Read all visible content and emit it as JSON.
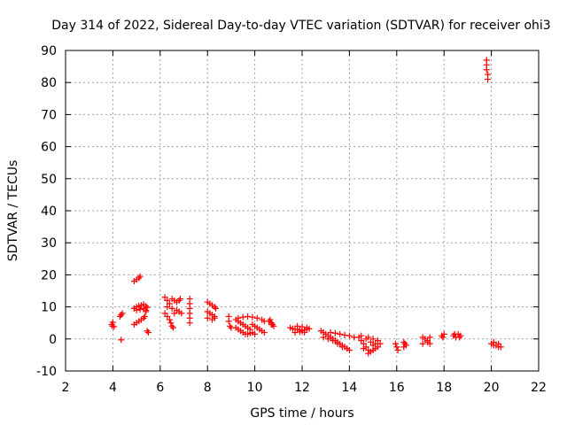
{
  "chart_data": {
    "type": "scatter",
    "title": "Day 314 of 2022, Sidereal Day-to-day VTEC variation (SDTVAR) for receiver ohi3",
    "xlabel": "GPS time / hours",
    "ylabel": "SDTVAR / TECUs",
    "xlim": [
      2,
      22
    ],
    "ylim": [
      -10,
      90
    ],
    "xticks": [
      2,
      4,
      6,
      8,
      10,
      12,
      14,
      16,
      18,
      20,
      22
    ],
    "yticks": [
      -10,
      0,
      10,
      20,
      30,
      40,
      50,
      60,
      70,
      80,
      90
    ],
    "grid": true,
    "marker": "+",
    "color": "#ff0000",
    "series": [
      {
        "name": "SDTVAR",
        "points": [
          [
            3.95,
            4.5
          ],
          [
            4.0,
            5.2
          ],
          [
            4.05,
            3.8
          ],
          [
            3.98,
            4.0
          ],
          [
            4.3,
            7.0
          ],
          [
            4.35,
            7.5
          ],
          [
            4.4,
            8.0
          ],
          [
            4.35,
            -0.3
          ],
          [
            4.9,
            18.0
          ],
          [
            5.0,
            18.5
          ],
          [
            5.1,
            19.0
          ],
          [
            5.15,
            19.5
          ],
          [
            4.9,
            9.5
          ],
          [
            5.0,
            10.0
          ],
          [
            5.1,
            10.3
          ],
          [
            5.2,
            10.5
          ],
          [
            5.3,
            10.8
          ],
          [
            5.4,
            10.2
          ],
          [
            5.45,
            9.8
          ],
          [
            5.0,
            9.0
          ],
          [
            5.15,
            9.2
          ],
          [
            5.3,
            9.5
          ],
          [
            5.4,
            9.0
          ],
          [
            5.4,
            8.5
          ],
          [
            5.35,
            7.0
          ],
          [
            5.3,
            6.5
          ],
          [
            5.2,
            6.0
          ],
          [
            5.1,
            5.5
          ],
          [
            5.0,
            5.0
          ],
          [
            4.9,
            4.5
          ],
          [
            5.5,
            2.0
          ],
          [
            5.45,
            2.5
          ],
          [
            6.2,
            13.0
          ],
          [
            6.3,
            12.0
          ],
          [
            6.4,
            11.0
          ],
          [
            6.5,
            12.5
          ],
          [
            6.6,
            12.0
          ],
          [
            6.7,
            11.5
          ],
          [
            6.8,
            12.0
          ],
          [
            6.85,
            12.5
          ],
          [
            6.2,
            8.0
          ],
          [
            6.3,
            7.0
          ],
          [
            6.4,
            6.0
          ],
          [
            6.45,
            5.0
          ],
          [
            6.5,
            4.0
          ],
          [
            6.55,
            3.5
          ],
          [
            6.3,
            10.0
          ],
          [
            6.5,
            9.5
          ],
          [
            6.7,
            9.0
          ],
          [
            6.8,
            8.5
          ],
          [
            6.9,
            8.0
          ],
          [
            6.6,
            8.0
          ],
          [
            7.25,
            12.5
          ],
          [
            7.25,
            11.0
          ],
          [
            7.25,
            9.5
          ],
          [
            7.25,
            8.0
          ],
          [
            7.25,
            6.5
          ],
          [
            7.25,
            5.0
          ],
          [
            8.0,
            11.5
          ],
          [
            8.1,
            11.0
          ],
          [
            8.2,
            10.5
          ],
          [
            8.3,
            10.0
          ],
          [
            8.35,
            9.5
          ],
          [
            8.0,
            8.5
          ],
          [
            8.1,
            8.0
          ],
          [
            8.2,
            7.5
          ],
          [
            8.3,
            7.0
          ],
          [
            8.0,
            6.5
          ],
          [
            8.2,
            6.0
          ],
          [
            8.3,
            6.5
          ],
          [
            8.9,
            7.0
          ],
          [
            8.9,
            5.5
          ],
          [
            8.95,
            4.0
          ],
          [
            9.0,
            3.5
          ],
          [
            9.2,
            6.0
          ],
          [
            9.3,
            5.5
          ],
          [
            9.4,
            5.0
          ],
          [
            9.5,
            4.5
          ],
          [
            9.6,
            4.0
          ],
          [
            9.7,
            3.5
          ],
          [
            9.8,
            3.0
          ],
          [
            9.2,
            3.5
          ],
          [
            9.3,
            3.0
          ],
          [
            9.4,
            2.5
          ],
          [
            9.5,
            2.0
          ],
          [
            9.6,
            1.5
          ],
          [
            9.7,
            1.5
          ],
          [
            9.8,
            1.8
          ],
          [
            9.9,
            2.0
          ],
          [
            9.3,
            6.5
          ],
          [
            9.5,
            6.8
          ],
          [
            9.7,
            7.0
          ],
          [
            9.9,
            6.8
          ],
          [
            10.1,
            6.5
          ],
          [
            10.3,
            6.0
          ],
          [
            10.4,
            5.5
          ],
          [
            9.9,
            4.5
          ],
          [
            10.0,
            4.0
          ],
          [
            10.1,
            3.5
          ],
          [
            10.2,
            3.0
          ],
          [
            10.3,
            2.5
          ],
          [
            10.4,
            2.0
          ],
          [
            10.0,
            1.5
          ],
          [
            10.6,
            5.5
          ],
          [
            10.7,
            5.0
          ],
          [
            10.75,
            4.5
          ],
          [
            10.8,
            4.0
          ],
          [
            10.65,
            6.0
          ],
          [
            10.7,
            4.5
          ],
          [
            11.5,
            3.5
          ],
          [
            11.6,
            3.2
          ],
          [
            11.7,
            3.0
          ],
          [
            11.8,
            3.0
          ],
          [
            11.9,
            2.8
          ],
          [
            12.0,
            2.5
          ],
          [
            12.1,
            2.8
          ],
          [
            12.2,
            3.0
          ],
          [
            12.3,
            3.2
          ],
          [
            11.7,
            2.0
          ],
          [
            11.9,
            2.2
          ],
          [
            12.1,
            2.0
          ],
          [
            11.8,
            4.0
          ],
          [
            12.0,
            3.8
          ],
          [
            12.2,
            3.5
          ],
          [
            12.8,
            2.5
          ],
          [
            12.9,
            2.0
          ],
          [
            13.0,
            1.5
          ],
          [
            13.1,
            1.0
          ],
          [
            13.2,
            0.5
          ],
          [
            13.3,
            0.0
          ],
          [
            13.4,
            -0.5
          ],
          [
            13.5,
            -1.0
          ],
          [
            13.6,
            -1.5
          ],
          [
            13.7,
            -2.0
          ],
          [
            13.8,
            -2.5
          ],
          [
            13.9,
            -3.0
          ],
          [
            14.0,
            -3.5
          ],
          [
            12.9,
            0.5
          ],
          [
            13.1,
            0.0
          ],
          [
            13.3,
            -0.5
          ],
          [
            13.5,
            -1.5
          ],
          [
            13.7,
            -2.5
          ],
          [
            13.2,
            2.0
          ],
          [
            13.4,
            1.8
          ],
          [
            13.6,
            1.5
          ],
          [
            13.8,
            1.2
          ],
          [
            14.0,
            1.0
          ],
          [
            14.2,
            0.5
          ],
          [
            14.4,
            0.5
          ],
          [
            14.5,
            -0.5
          ],
          [
            14.6,
            -1.5
          ],
          [
            14.7,
            -2.5
          ],
          [
            14.8,
            -3.5
          ],
          [
            14.9,
            -4.0
          ],
          [
            15.0,
            -3.5
          ],
          [
            15.1,
            -3.0
          ],
          [
            15.2,
            -2.5
          ],
          [
            14.5,
            1.0
          ],
          [
            14.7,
            0.0
          ],
          [
            14.9,
            -1.0
          ],
          [
            15.1,
            -1.5
          ],
          [
            14.6,
            -3.0
          ],
          [
            14.8,
            -4.5
          ],
          [
            15.0,
            -2.0
          ],
          [
            14.8,
            0.5
          ],
          [
            15.0,
            0.0
          ],
          [
            15.2,
            -0.5
          ],
          [
            15.3,
            -1.5
          ],
          [
            15.95,
            -1.5
          ],
          [
            16.0,
            -2.5
          ],
          [
            16.05,
            -3.5
          ],
          [
            16.3,
            -1.0
          ],
          [
            16.35,
            -1.5
          ],
          [
            16.4,
            -2.0
          ],
          [
            16.3,
            -2.5
          ],
          [
            17.1,
            0.5
          ],
          [
            17.2,
            0.0
          ],
          [
            17.3,
            -0.5
          ],
          [
            17.1,
            -1.5
          ],
          [
            17.3,
            -1.0
          ],
          [
            17.4,
            0.5
          ],
          [
            17.4,
            -1.5
          ],
          [
            17.9,
            1.0
          ],
          [
            17.95,
            0.5
          ],
          [
            18.0,
            1.5
          ],
          [
            18.4,
            1.0
          ],
          [
            18.5,
            0.5
          ],
          [
            18.6,
            1.5
          ],
          [
            18.7,
            1.0
          ],
          [
            18.45,
            1.5
          ],
          [
            18.65,
            0.5
          ],
          [
            20.0,
            -1.5
          ],
          [
            20.1,
            -2.0
          ],
          [
            20.2,
            -2.0
          ],
          [
            20.3,
            -2.5
          ],
          [
            20.4,
            -2.5
          ],
          [
            20.1,
            -1.0
          ],
          [
            20.3,
            -1.5
          ],
          [
            19.8,
            87.0
          ],
          [
            19.8,
            85.5
          ],
          [
            19.8,
            84.0
          ],
          [
            19.85,
            82.5
          ],
          [
            19.85,
            81.0
          ]
        ]
      }
    ]
  }
}
